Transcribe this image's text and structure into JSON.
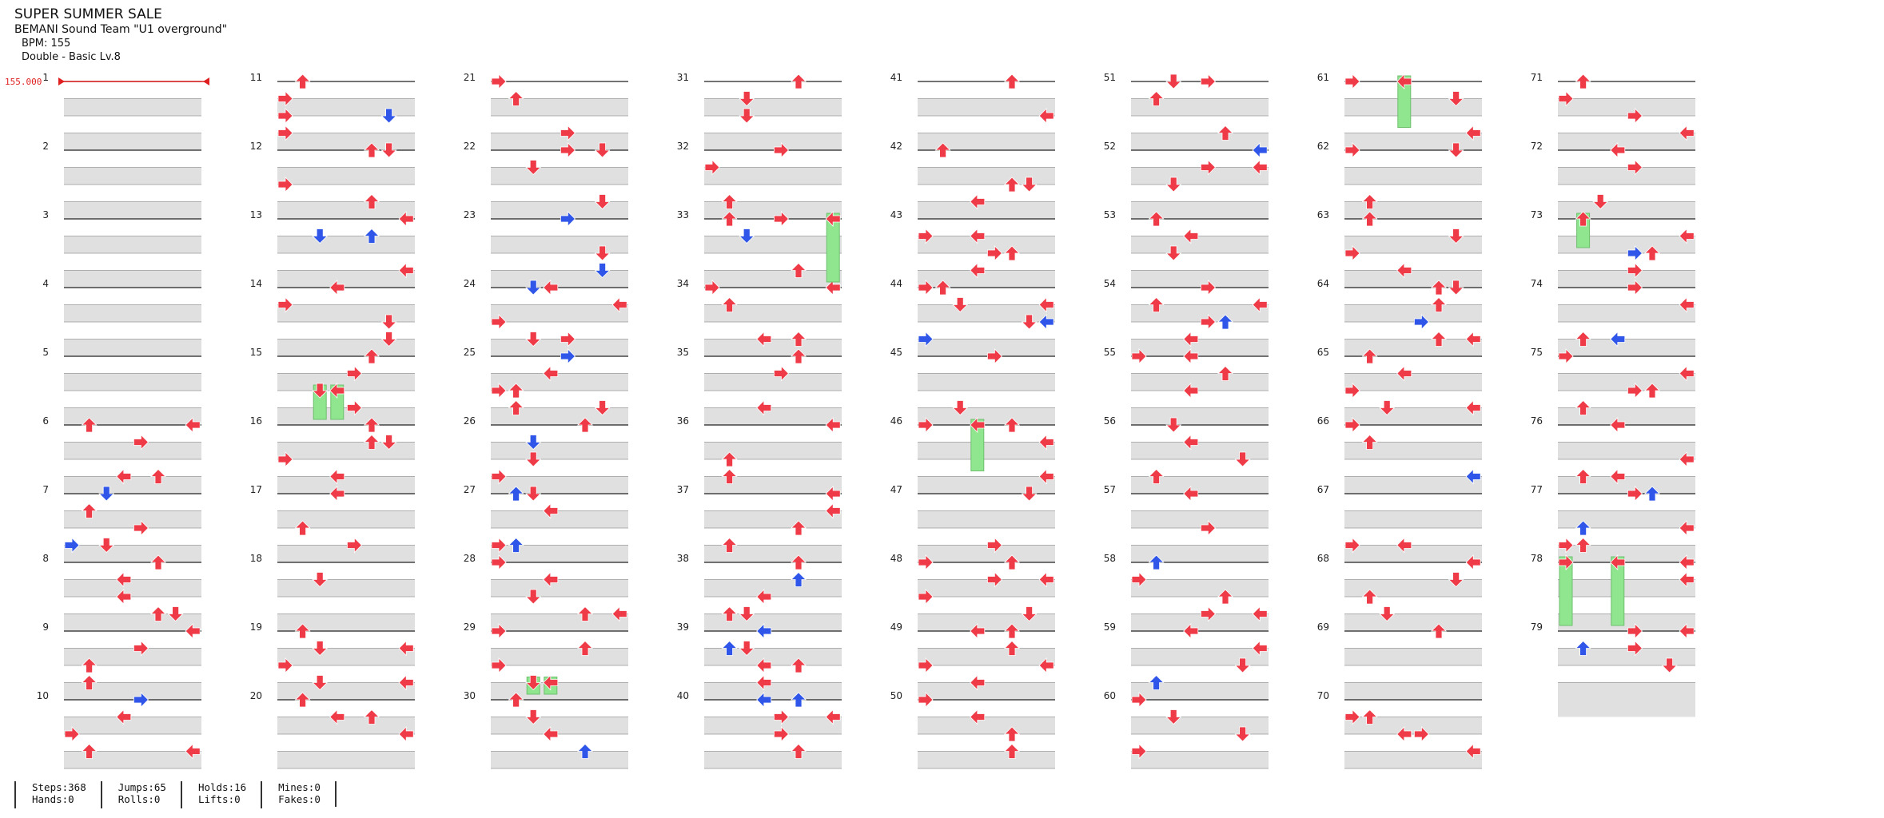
{
  "song": {
    "title": "SUPER SUMMER SALE",
    "artist": "BEMANI Sound Team \"U1 overground\"",
    "bpm_label": "BPM: 155",
    "difficulty_label": "Double - Basic  Lv.8"
  },
  "chart_meta": {
    "bpm_marker": "155.000",
    "measures_per_column": 10,
    "total_measures": 79,
    "lanes": 8
  },
  "colors": {
    "tap": "#ef3b47",
    "alt_tap": "#2f56e8",
    "hold": "#8fe68f",
    "bpm_line": "#e02020",
    "shade": "#e0e0e0"
  },
  "stats": {
    "steps": "Steps:368",
    "hands": "Hands:0",
    "jumps": "Jumps:65",
    "rolls": "Rolls:0",
    "holds": "Holds:16",
    "lifts": "Lifts:0",
    "mines": "Mines:0",
    "fakes": "Fakes:0"
  }
}
